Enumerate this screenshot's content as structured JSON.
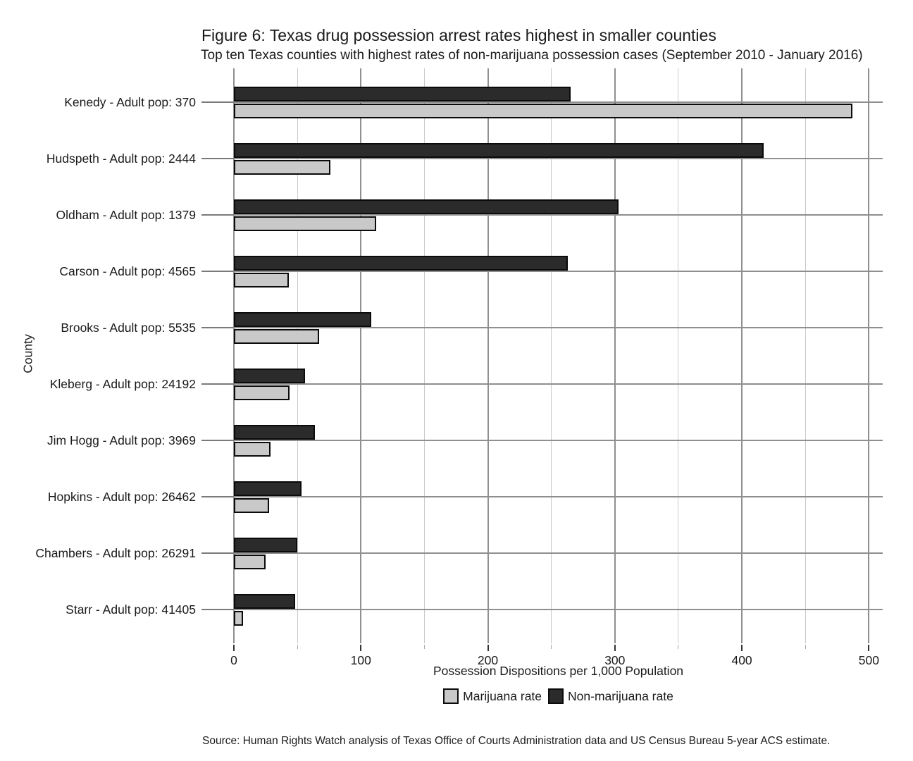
{
  "figure": {
    "title": "Figure 6: Texas drug possession arrest rates highest in smaller counties",
    "subtitle": "Top ten Texas counties with highest rates of non-marijuana possession cases (September 2010 - January 2016)",
    "source": "Source: Human Rights Watch analysis of Texas Office of Courts Administration data and US Census Bureau 5-year ACS estimate."
  },
  "legend": {
    "items": [
      {
        "label": "Marijuana rate",
        "color": "#c9c9c9"
      },
      {
        "label": "Non-marijuana rate",
        "color": "#2b2b2b"
      }
    ]
  },
  "colors": {
    "marijuana_bar": "#c9c9c9",
    "non_marijuana_bar": "#2b2b2b",
    "bar_border": "#0b0b0b",
    "grid_major": "#8f8f8f",
    "grid_minor": "#c9c9c9",
    "text": "#1a1a1a",
    "background": "#ffffff"
  },
  "chart_data": {
    "type": "bar",
    "orientation": "horizontal",
    "title": "Figure 6: Texas drug possession arrest rates highest in smaller counties",
    "subtitle": "Top ten Texas counties with highest rates of non-marijuana possession cases (September 2010 - January 2016)",
    "xlabel": "Possession Dispositions per 1,000 Population",
    "ylabel": "County",
    "xlim": [
      0,
      500
    ],
    "x_major_ticks": [
      0,
      100,
      200,
      300,
      400,
      500
    ],
    "x_minor_ticks": [
      50,
      150,
      250,
      350,
      450
    ],
    "grid": "vertical major+minor, horizontal major at each category",
    "legend_position": "bottom",
    "categories": [
      "Kenedy - Adult pop: 370",
      "Hudspeth - Adult pop: 2444",
      "Oldham - Adult pop: 1379",
      "Carson - Adult pop: 4565",
      "Brooks - Adult pop: 5535",
      "Kleberg - Adult pop: 24192",
      "Jim Hogg - Adult pop: 3969",
      "Hopkins - Adult pop: 26462",
      "Chambers - Adult pop: 26291",
      "Starr - Adult pop: 41405"
    ],
    "series": [
      {
        "name": "Non-marijuana rate",
        "color": "#2b2b2b",
        "values": [
          265,
          417,
          303,
          263,
          108,
          56,
          64,
          53,
          50,
          48
        ]
      },
      {
        "name": "Marijuana rate",
        "color": "#c9c9c9",
        "values": [
          487,
          76,
          112,
          43,
          67,
          44,
          29,
          28,
          25,
          7
        ]
      }
    ]
  }
}
